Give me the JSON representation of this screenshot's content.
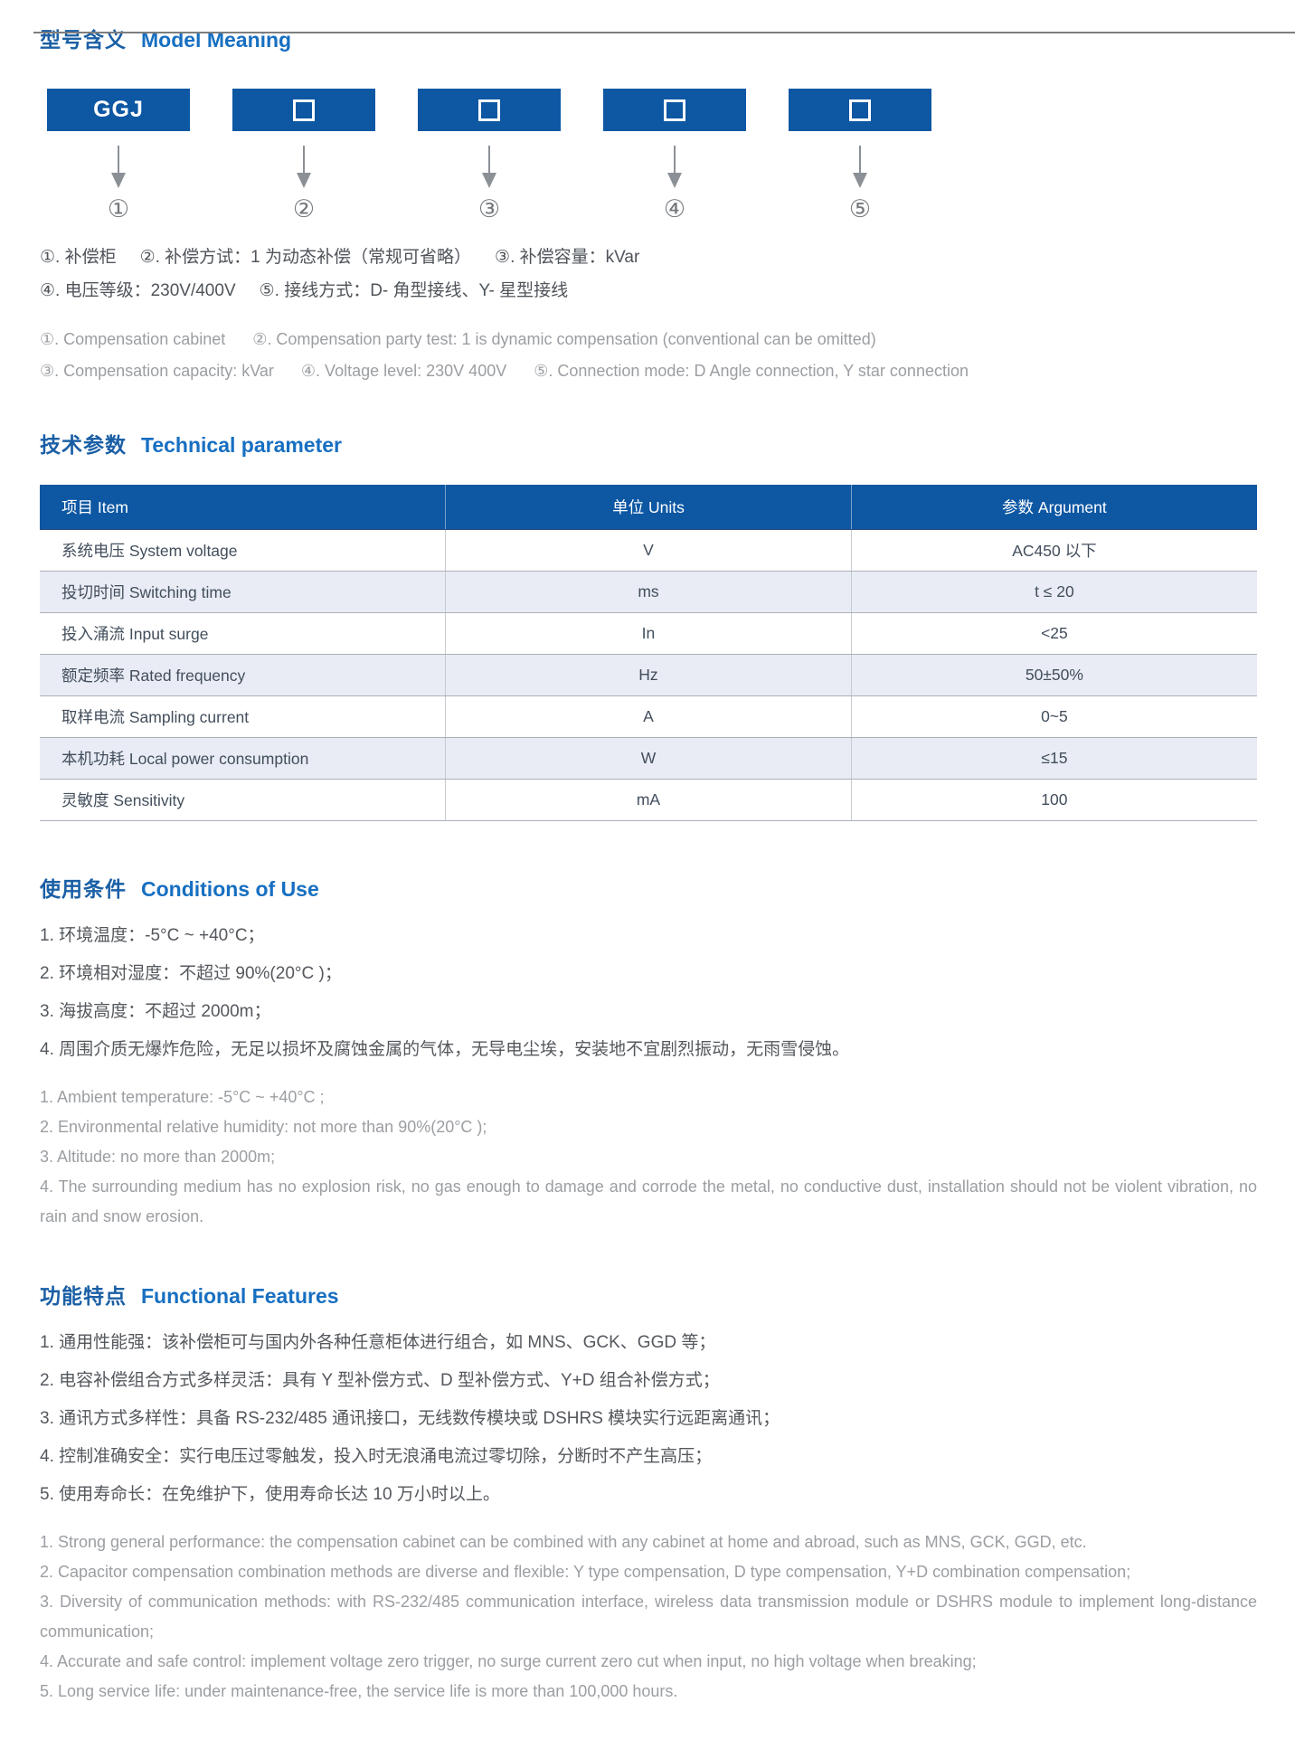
{
  "colors": {
    "heading_blue_zh": "#1a5fa5",
    "heading_blue_en": "#176fc1",
    "box_blue": "#0d57a3",
    "table_header_blue": "#0d57a3",
    "shaded_row_bg": "#e9ecf4",
    "dark_text": "#4f545a",
    "light_text": "#9b9ea2",
    "arrow_gray": "#8b9096"
  },
  "model_meaning": {
    "heading_zh": "型号含义",
    "heading_en": "Model Meaning",
    "boxes": [
      {
        "label": "GGJ"
      },
      {
        "icon": "square-placeholder"
      },
      {
        "icon": "square-placeholder"
      },
      {
        "icon": "square-placeholder"
      },
      {
        "icon": "square-placeholder"
      }
    ],
    "markers": [
      "①",
      "②",
      "③",
      "④",
      "⑤"
    ],
    "notes_zh_line1": [
      "①. 补偿柜",
      "②. 补偿方试：1 为动态补偿（常规可省略）",
      "③. 补偿容量：kVar"
    ],
    "notes_zh_line2": [
      "④. 电压等级：230V/400V",
      "⑤. 接线方式：D- 角型接线、Y- 星型接线"
    ],
    "notes_en_line1": [
      "①. Compensation cabinet",
      "②. Compensation party test: 1 is dynamic compensation (conventional can be omitted)"
    ],
    "notes_en_line2": [
      "③. Compensation capacity: kVar",
      "④. Voltage level: 230V 400V",
      "⑤. Connection mode: D Angle connection, Y star connection"
    ]
  },
  "technical": {
    "heading_zh": "技术参数",
    "heading_en": "Technical parameter",
    "table": {
      "headers": [
        "项目 Item",
        "单位 Units",
        "参数 Argument"
      ],
      "rows": [
        {
          "item": "系统电压 System voltage",
          "unit": "V",
          "arg": "AC450 以下"
        },
        {
          "item": "投切时间 Switching time",
          "unit": "ms",
          "arg": "t ≤ 20"
        },
        {
          "item": "投入涌流 Input surge",
          "unit": "In",
          "arg": "<25"
        },
        {
          "item": "额定频率 Rated frequency",
          "unit": "Hz",
          "arg": "50±50%"
        },
        {
          "item": "取样电流 Sampling current",
          "unit": "A",
          "arg": "0~5"
        },
        {
          "item": "本机功耗 Local power consumption",
          "unit": "W",
          "arg": "≤15"
        },
        {
          "item": "灵敏度 Sensitivity",
          "unit": "mA",
          "arg": "100"
        }
      ]
    }
  },
  "conditions": {
    "heading_zh": "使用条件",
    "heading_en": "Conditions of Use",
    "items_zh": [
      "1. 环境温度：-5°C ~ +40°C；",
      "2. 环境相对湿度：不超过 90%(20°C )；",
      "3. 海拔高度：不超过 2000m；",
      "4. 周围介质无爆炸危险，无足以损坏及腐蚀金属的气体，无导电尘埃，安装地不宜剧烈振动，无雨雪侵蚀。"
    ],
    "items_en": [
      "1. Ambient temperature: -5°C ~ +40°C ;",
      "2. Environmental relative humidity: not more than 90%(20°C );",
      "3. Altitude: no more than 2000m;",
      "4. The surrounding medium has no explosion risk, no gas enough to damage and corrode the metal, no conductive dust, installation should not be violent vibration, no rain and snow erosion."
    ]
  },
  "features": {
    "heading_zh": "功能特点",
    "heading_en": "Functional Features",
    "items_zh": [
      "1. 通用性能强：该补偿柜可与国内外各种任意柜体进行组合，如 MNS、GCK、GGD 等；",
      "2. 电容补偿组合方式多样灵活：具有 Y 型补偿方式、D 型补偿方式、Y+D 组合补偿方式；",
      "3. 通讯方式多样性：具备 RS-232/485 通讯接口，无线数传模块或 DSHRS 模块实行远距离通讯；",
      "4. 控制准确安全：实行电压过零触发，投入时无浪涌电流过零切除，分断时不产生高压；",
      "5. 使用寿命长：在免维护下，使用寿命长达 10 万小时以上。"
    ],
    "items_en": [
      "1. Strong general performance: the compensation cabinet can be combined with any cabinet at home and abroad, such as MNS, GCK, GGD, etc.",
      "2. Capacitor compensation combination methods are diverse and flexible: Y type compensation, D type compensation, Y+D combination compensation;",
      "3. Diversity of communication methods: with RS-232/485 communication interface, wireless data transmission module or DSHRS module to implement long-distance communication;",
      "4. Accurate and safe control: implement voltage zero trigger, no surge current zero cut when input, no high voltage when breaking;",
      "5. Long service life: under maintenance-free, the service life is more than 100,000 hours."
    ]
  }
}
